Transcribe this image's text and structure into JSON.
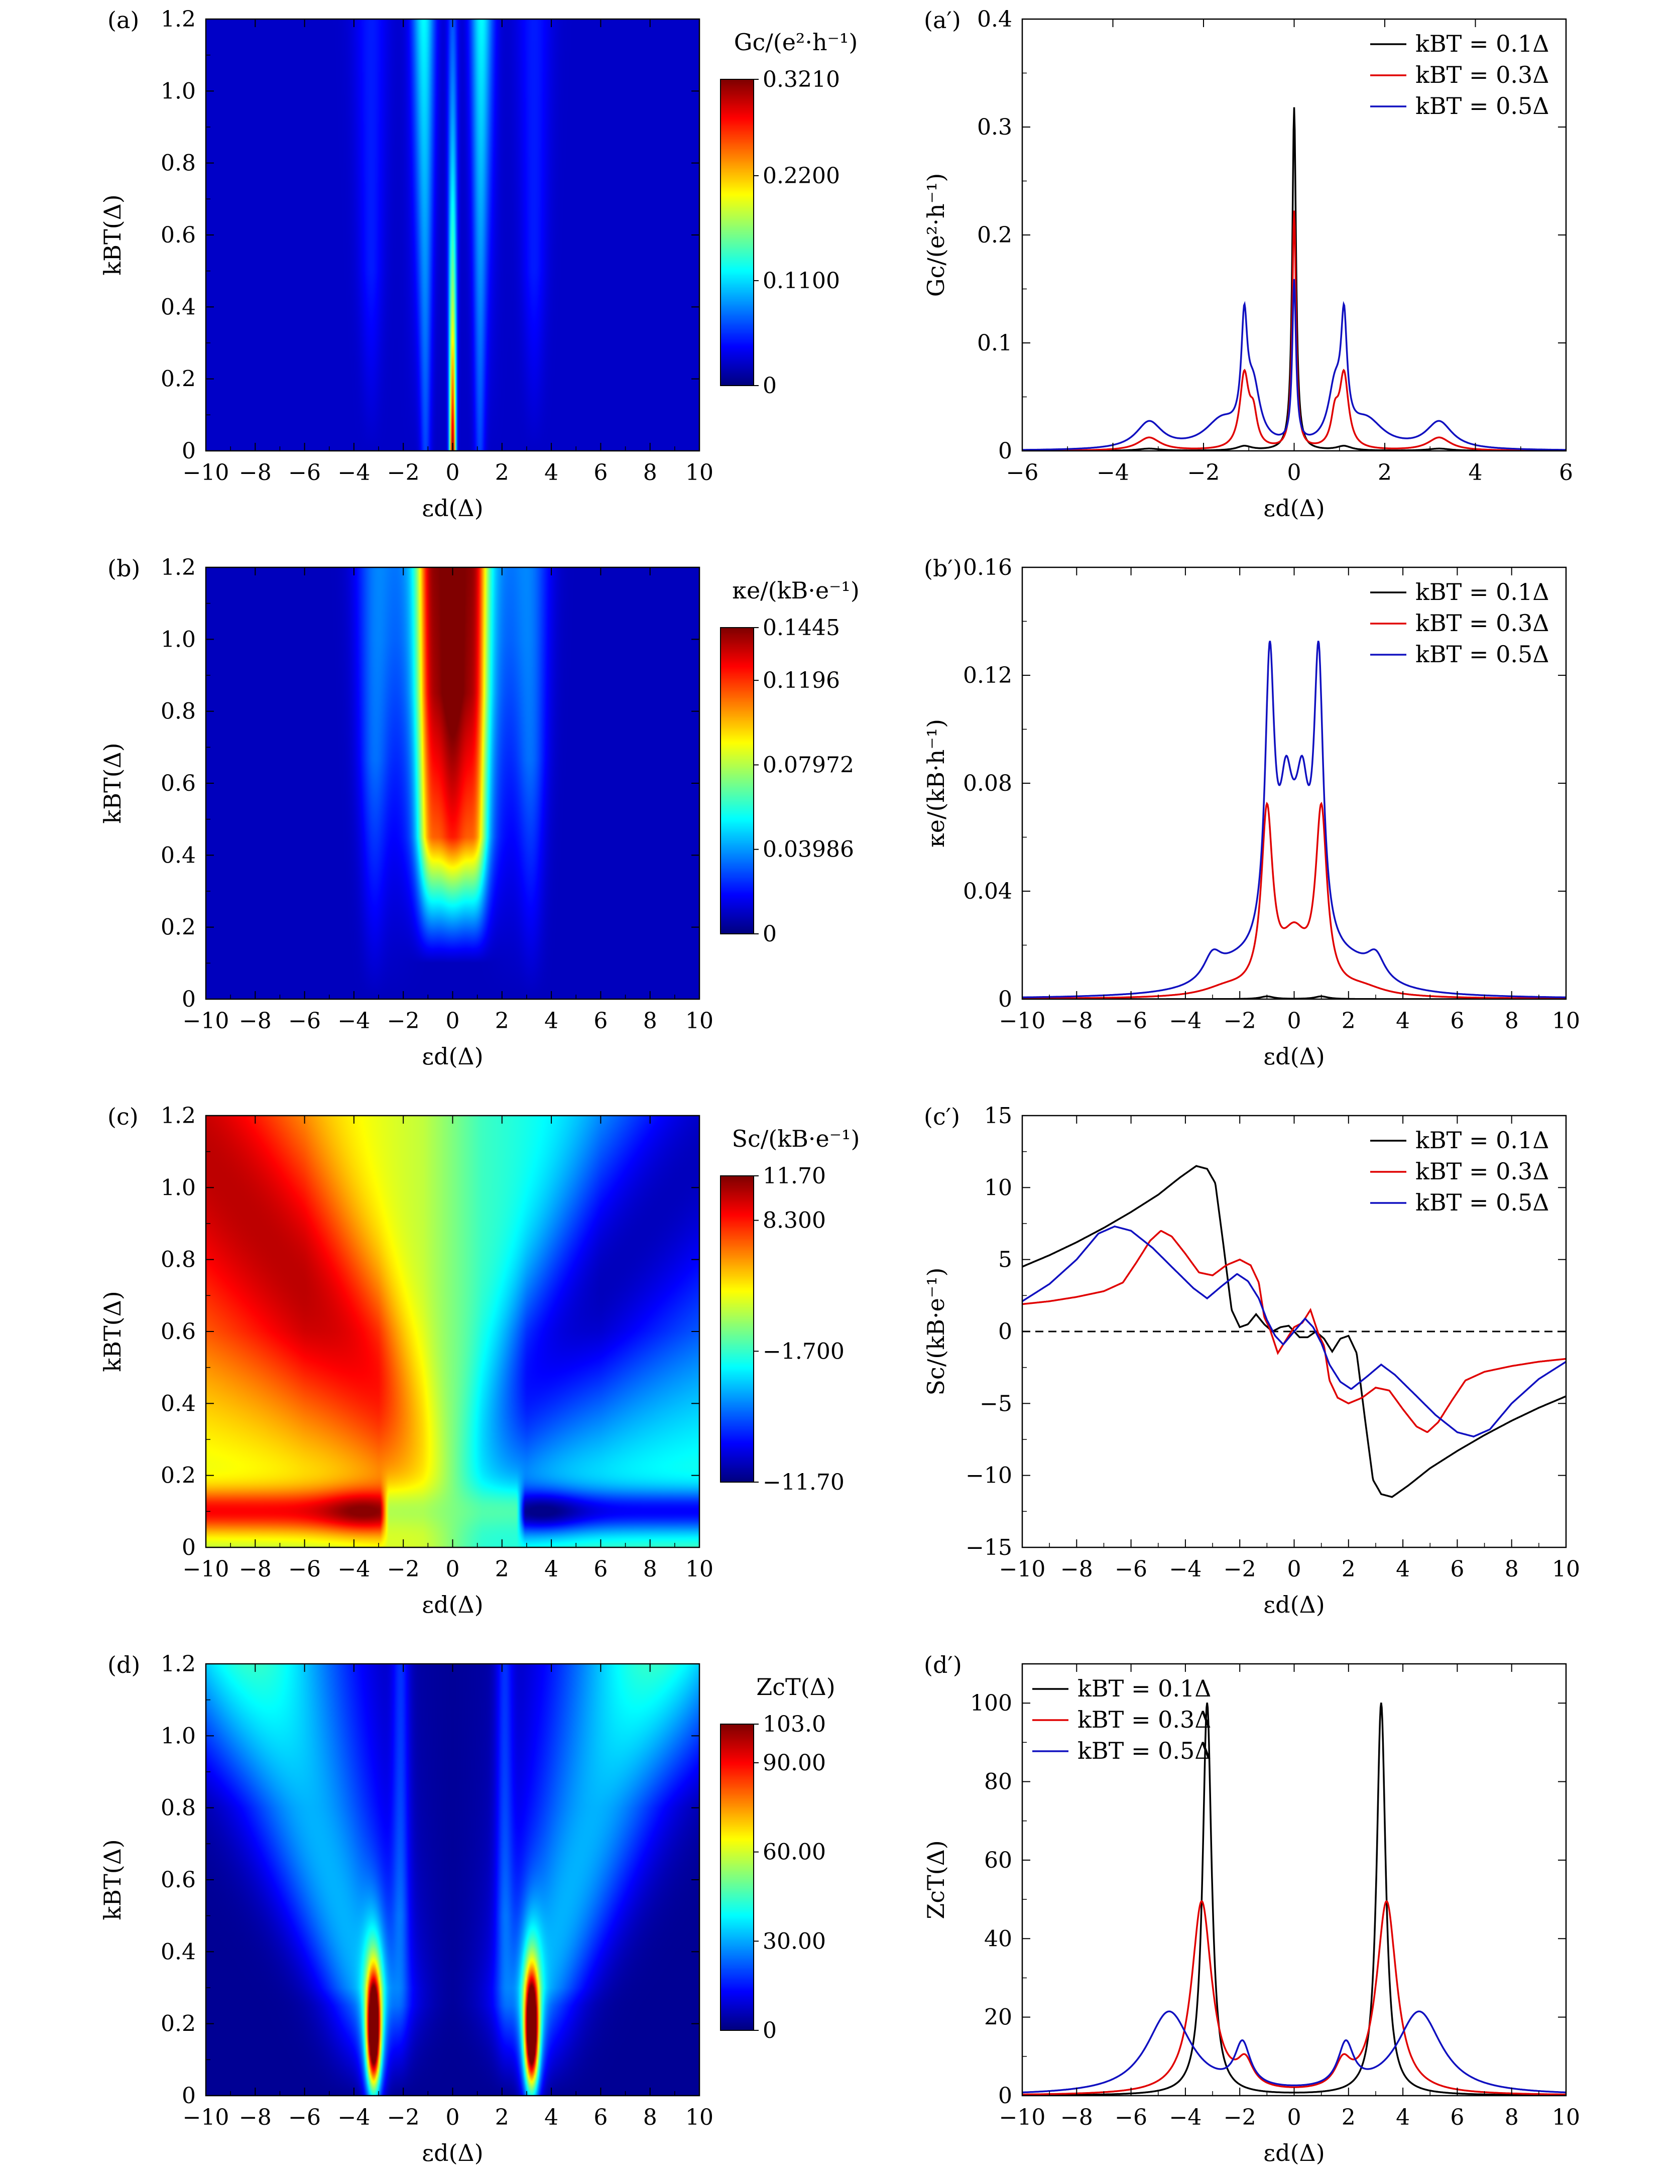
{
  "figure": {
    "x_label": "εd(Δ)",
    "y_label_heatmap": "kBT(Δ)"
  },
  "chart_data": [
    {
      "id": "a",
      "panel_label": "(a)",
      "type": "heatmap",
      "xlim": [
        -10,
        10
      ],
      "ylim": [
        0,
        1.2
      ],
      "xticks": [
        -10,
        -8,
        -6,
        -4,
        -2,
        0,
        2,
        4,
        6,
        8,
        10
      ],
      "yticks": [
        0,
        0.2,
        0.4,
        0.6,
        0.8,
        1.0,
        1.2
      ],
      "xlabel": "εd(Δ)",
      "ylabel": "kBT(Δ)",
      "colorbar_title": "Gc/(e²·h⁻¹)",
      "colorbar_range": [
        0,
        0.321
      ],
      "colorbar_ticks": [
        {
          "value": 0.321,
          "label": "0.3210"
        },
        {
          "value": 0.22,
          "label": "0.2200"
        },
        {
          "value": 0.11,
          "label": "0.1100"
        },
        {
          "value": 0,
          "label": "0"
        }
      ],
      "model": "Gc"
    },
    {
      "id": "a2",
      "panel_label": "(a′)",
      "type": "line",
      "xlim": [
        -6,
        6
      ],
      "ylim": [
        0,
        0.4
      ],
      "xticks": [
        -6,
        -4,
        -2,
        0,
        2,
        4,
        6
      ],
      "yticks": [
        0,
        0.1,
        0.2,
        0.3,
        0.4
      ],
      "xlabel": "εd(Δ)",
      "ylabel": "Gc/(e²·h⁻¹)",
      "legend_position": "top-right",
      "series": [
        {
          "name": "kBT = 0.1Δ",
          "color": "#000000",
          "peaks": [
            [
              -3.2,
              0.002,
              0.3
            ],
            [
              -1.1,
              0.004,
              0.2
            ],
            [
              0,
              0.318,
              0.05
            ],
            [
              1.1,
              0.004,
              0.2
            ],
            [
              3.2,
              0.002,
              0.3
            ]
          ]
        },
        {
          "name": "kBT = 0.3Δ",
          "color": "#e00000",
          "peaks": [
            [
              -3.2,
              0.012,
              0.3
            ],
            [
              -1.1,
              0.068,
              0.12
            ],
            [
              -0.9,
              0.028,
              0.1
            ],
            [
              0,
              0.22,
              0.05
            ],
            [
              0.9,
              0.028,
              0.1
            ],
            [
              1.1,
              0.068,
              0.12
            ],
            [
              3.2,
              0.012,
              0.3
            ]
          ]
        },
        {
          "name": "kBT = 0.5Δ",
          "color": "#1010c0",
          "peaks": [
            [
              -3.2,
              0.025,
              0.35
            ],
            [
              -1.6,
              0.025,
              0.45
            ],
            [
              -1.1,
              0.1,
              0.08
            ],
            [
              -0.9,
              0.05,
              0.18
            ],
            [
              0,
              0.15,
              0.05
            ],
            [
              0.9,
              0.05,
              0.18
            ],
            [
              1.1,
              0.1,
              0.08
            ],
            [
              1.6,
              0.025,
              0.45
            ],
            [
              3.2,
              0.025,
              0.35
            ]
          ]
        }
      ]
    },
    {
      "id": "b",
      "panel_label": "(b)",
      "type": "heatmap",
      "xlim": [
        -10,
        10
      ],
      "ylim": [
        0,
        1.2
      ],
      "xticks": [
        -10,
        -8,
        -6,
        -4,
        -2,
        0,
        2,
        4,
        6,
        8,
        10
      ],
      "yticks": [
        0,
        0.2,
        0.4,
        0.6,
        0.8,
        1.0,
        1.2
      ],
      "xlabel": "εd(Δ)",
      "ylabel": "kBT(Δ)",
      "colorbar_title": "κe/(kB·e⁻¹)",
      "colorbar_range": [
        0,
        0.1445
      ],
      "colorbar_ticks": [
        {
          "value": 0.1445,
          "label": "0.1445"
        },
        {
          "value": 0.1196,
          "label": "0.1196"
        },
        {
          "value": 0.07972,
          "label": "0.07972"
        },
        {
          "value": 0.03986,
          "label": "0.03986"
        },
        {
          "value": 0,
          "label": "0"
        }
      ],
      "model": "Ke"
    },
    {
      "id": "b2",
      "panel_label": "(b′)",
      "type": "line",
      "xlim": [
        -10,
        10
      ],
      "ylim": [
        0,
        0.16
      ],
      "xticks": [
        -10,
        -8,
        -6,
        -4,
        -2,
        0,
        2,
        4,
        6,
        8,
        10
      ],
      "yticks": [
        0,
        0.04,
        0.08,
        0.12,
        0.16
      ],
      "xlabel": "εd(Δ)",
      "ylabel": "κe/(kB·h⁻¹)",
      "legend_position": "top-right",
      "series": [
        {
          "name": "kBT = 0.1Δ",
          "color": "#000000",
          "peaks": [
            [
              -1,
              0.001,
              0.3
            ],
            [
              1,
              0.001,
              0.3
            ]
          ]
        },
        {
          "name": "kBT = 0.3Δ",
          "color": "#e00000",
          "peaks": [
            [
              -1,
              0.065,
              0.25
            ],
            [
              1,
              0.065,
              0.25
            ],
            [
              0,
              0.02,
              0.6
            ],
            [
              -2.5,
              0.003,
              1.0
            ],
            [
              2.5,
              0.003,
              1.0
            ]
          ]
        },
        {
          "name": "kBT = 0.5Δ",
          "color": "#1010c0",
          "peaks": [
            [
              -0.9,
              0.1,
              0.2
            ],
            [
              0.9,
              0.1,
              0.2
            ],
            [
              -0.3,
              0.03,
              0.25
            ],
            [
              0.3,
              0.03,
              0.25
            ],
            [
              0,
              0.045,
              0.9
            ],
            [
              -3,
              0.009,
              0.4
            ],
            [
              3,
              0.009,
              0.4
            ],
            [
              -2.2,
              0.006,
              1.0
            ],
            [
              2.2,
              0.006,
              1.0
            ]
          ]
        }
      ]
    },
    {
      "id": "c",
      "panel_label": "(c)",
      "type": "heatmap",
      "xlim": [
        -10,
        10
      ],
      "ylim": [
        0,
        1.2
      ],
      "xticks": [
        -10,
        -8,
        -6,
        -4,
        -2,
        0,
        2,
        4,
        6,
        8,
        10
      ],
      "yticks": [
        0,
        0.2,
        0.4,
        0.6,
        0.8,
        1.0,
        1.2
      ],
      "xlabel": "εd(Δ)",
      "ylabel": "kBT(Δ)",
      "colorbar_title": "Sc/(kB·e⁻¹)",
      "colorbar_range": [
        -11.7,
        11.7
      ],
      "colorbar_ticks": [
        {
          "value": 11.7,
          "label": "11.70"
        },
        {
          "value": 8.3,
          "label": "8.300"
        },
        {
          "value": -1.7,
          "label": "−1.700"
        },
        {
          "value": -11.7,
          "label": "−11.70"
        }
      ],
      "model": "Sc"
    },
    {
      "id": "c2",
      "panel_label": "(c′)",
      "type": "line",
      "xlim": [
        -10,
        10
      ],
      "ylim": [
        -15,
        15
      ],
      "xticks": [
        -10,
        -8,
        -6,
        -4,
        -2,
        0,
        2,
        4,
        6,
        8,
        10
      ],
      "yticks": [
        -15,
        -10,
        -5,
        0,
        5,
        10,
        15
      ],
      "xlabel": "εd(Δ)",
      "ylabel": "Sc/(kB·e⁻¹)",
      "legend_position": "top-right",
      "zero_line": true,
      "series": [
        {
          "name": "kBT = 0.1Δ",
          "color": "#000000",
          "points": [
            [
              -10,
              4.5
            ],
            [
              -9,
              5.3
            ],
            [
              -8,
              6.2
            ],
            [
              -7,
              7.2
            ],
            [
              -6,
              8.3
            ],
            [
              -5,
              9.5
            ],
            [
              -4.2,
              10.7
            ],
            [
              -3.6,
              11.5
            ],
            [
              -3.2,
              11.3
            ],
            [
              -2.9,
              10.3
            ],
            [
              -2.6,
              6
            ],
            [
              -2.3,
              1.5
            ],
            [
              -2,
              0.3
            ],
            [
              -1.7,
              0.5
            ],
            [
              -1.4,
              1.2
            ],
            [
              -1.1,
              0.5
            ],
            [
              -0.8,
              0
            ],
            [
              -0.5,
              0.3
            ],
            [
              -0.2,
              0.4
            ],
            [
              0,
              0
            ],
            [
              0.2,
              -0.4
            ],
            [
              0.5,
              -0.4
            ],
            [
              0.8,
              0
            ],
            [
              1.1,
              -0.5
            ],
            [
              1.4,
              -1.4
            ],
            [
              1.7,
              -0.5
            ],
            [
              2,
              -0.3
            ],
            [
              2.3,
              -1.5
            ],
            [
              2.6,
              -6
            ],
            [
              2.9,
              -10.3
            ],
            [
              3.2,
              -11.3
            ],
            [
              3.6,
              -11.5
            ],
            [
              4.2,
              -10.7
            ],
            [
              5,
              -9.5
            ],
            [
              6,
              -8.3
            ],
            [
              7,
              -7.2
            ],
            [
              8,
              -6.2
            ],
            [
              9,
              -5.3
            ],
            [
              10,
              -4.5
            ]
          ]
        },
        {
          "name": "kBT = 0.3Δ",
          "color": "#e00000",
          "points": [
            [
              -10,
              1.9
            ],
            [
              -9,
              2.1
            ],
            [
              -8,
              2.4
            ],
            [
              -7,
              2.8
            ],
            [
              -6.3,
              3.4
            ],
            [
              -5.8,
              4.8
            ],
            [
              -5.3,
              6.3
            ],
            [
              -4.9,
              7
            ],
            [
              -4.5,
              6.6
            ],
            [
              -4,
              5.4
            ],
            [
              -3.5,
              4.1
            ],
            [
              -3,
              3.9
            ],
            [
              -2.5,
              4.6
            ],
            [
              -2,
              5
            ],
            [
              -1.6,
              4.6
            ],
            [
              -1.3,
              3.4
            ],
            [
              -1.1,
              1
            ],
            [
              -0.9,
              0.2
            ],
            [
              -0.6,
              -1.5
            ],
            [
              -0.3,
              -0.6
            ],
            [
              0,
              0.3
            ],
            [
              0.3,
              0.6
            ],
            [
              0.6,
              1.5
            ],
            [
              0.9,
              -0.2
            ],
            [
              1.1,
              -1
            ],
            [
              1.3,
              -3.4
            ],
            [
              1.6,
              -4.6
            ],
            [
              2,
              -5
            ],
            [
              2.5,
              -4.6
            ],
            [
              3,
              -3.9
            ],
            [
              3.5,
              -4.1
            ],
            [
              4,
              -5.4
            ],
            [
              4.5,
              -6.6
            ],
            [
              4.9,
              -7
            ],
            [
              5.3,
              -6.3
            ],
            [
              5.8,
              -4.8
            ],
            [
              6.3,
              -3.4
            ],
            [
              7,
              -2.8
            ],
            [
              8,
              -2.4
            ],
            [
              9,
              -2.1
            ],
            [
              10,
              -1.9
            ]
          ]
        },
        {
          "name": "kBT = 0.5Δ",
          "color": "#1010c0",
          "points": [
            [
              -10,
              2.1
            ],
            [
              -9,
              3.3
            ],
            [
              -8,
              5
            ],
            [
              -7.2,
              6.8
            ],
            [
              -6.6,
              7.3
            ],
            [
              -6,
              7
            ],
            [
              -5.2,
              5.8
            ],
            [
              -4.4,
              4.3
            ],
            [
              -3.7,
              3
            ],
            [
              -3.2,
              2.3
            ],
            [
              -2.7,
              3.1
            ],
            [
              -2.1,
              4
            ],
            [
              -1.7,
              3.5
            ],
            [
              -1.3,
              2.3
            ],
            [
              -1,
              0.8
            ],
            [
              -0.7,
              -0.3
            ],
            [
              -0.4,
              -0.9
            ],
            [
              0,
              0
            ],
            [
              0.4,
              0.9
            ],
            [
              0.7,
              0.3
            ],
            [
              1,
              -0.8
            ],
            [
              1.3,
              -2.3
            ],
            [
              1.7,
              -3.5
            ],
            [
              2.1,
              -4
            ],
            [
              2.7,
              -3.1
            ],
            [
              3.2,
              -2.3
            ],
            [
              3.7,
              -3
            ],
            [
              4.4,
              -4.3
            ],
            [
              5.2,
              -5.8
            ],
            [
              6,
              -7
            ],
            [
              6.6,
              -7.3
            ],
            [
              7.2,
              -6.8
            ],
            [
              8,
              -5
            ],
            [
              9,
              -3.3
            ],
            [
              10,
              -2.1
            ]
          ]
        }
      ]
    },
    {
      "id": "d",
      "panel_label": "(d)",
      "type": "heatmap",
      "xlim": [
        -10,
        10
      ],
      "ylim": [
        0,
        1.2
      ],
      "xticks": [
        -10,
        -8,
        -6,
        -4,
        -2,
        0,
        2,
        4,
        6,
        8,
        10
      ],
      "yticks": [
        0,
        0.2,
        0.4,
        0.6,
        0.8,
        1.0,
        1.2
      ],
      "xlabel": "εd(Δ)",
      "ylabel": "kBT(Δ)",
      "colorbar_title": "ZcT(Δ)",
      "colorbar_range": [
        0,
        103
      ],
      "colorbar_ticks": [
        {
          "value": 103,
          "label": "103.0"
        },
        {
          "value": 90,
          "label": "90.00"
        },
        {
          "value": 60,
          "label": "60.00"
        },
        {
          "value": 30,
          "label": "30.00"
        },
        {
          "value": 0,
          "label": "0"
        }
      ],
      "model": "ZT"
    },
    {
      "id": "d2",
      "panel_label": "(d′)",
      "type": "line",
      "xlim": [
        -10,
        10
      ],
      "ylim": [
        0,
        110
      ],
      "xticks": [
        -10,
        -8,
        -6,
        -4,
        -2,
        0,
        2,
        4,
        6,
        8,
        10
      ],
      "yticks": [
        0,
        20,
        40,
        60,
        80,
        100
      ],
      "xlabel": "εd(Δ)",
      "ylabel": "ZcT(Δ)",
      "legend_position": "top-left",
      "series": [
        {
          "name": "kBT = 0.1Δ",
          "color": "#000000",
          "peaks": [
            [
              -3.2,
              100,
              0.2
            ],
            [
              3.2,
              100,
              0.2
            ]
          ]
        },
        {
          "name": "kBT = 0.3Δ",
          "color": "#e00000",
          "peaks": [
            [
              -3.4,
              49,
              0.45
            ],
            [
              3.4,
              49,
              0.45
            ],
            [
              -1.8,
              6.5,
              0.35
            ],
            [
              1.8,
              6.5,
              0.35
            ]
          ]
        },
        {
          "name": "kBT = 0.5Δ",
          "color": "#1010c0",
          "peaks": [
            [
              -4.6,
              21,
              1.0
            ],
            [
              4.6,
              21,
              1.0
            ],
            [
              -1.9,
              11,
              0.35
            ],
            [
              1.9,
              11,
              0.35
            ]
          ]
        }
      ]
    }
  ]
}
